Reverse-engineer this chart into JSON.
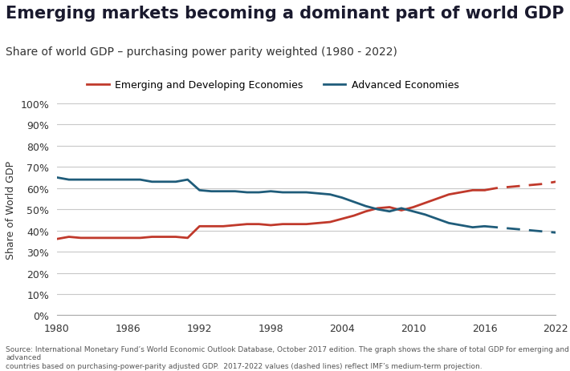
{
  "title": "Emerging markets becoming a dominant part of world GDP",
  "subtitle": "Share of world GDP – purchasing power parity weighted (1980 - 2022)",
  "ylabel": "Share of World GDP",
  "source_text": "Source: International Monetary Fund’s World Economic Outlook Database, October 2017 edition. The graph shows the share of total GDP for emerging and advanced\ncountries based on purchasing-power-parity adjusted GDP.  2017-2022 values (dashed lines) reflect IMF’s medium-term projection.",
  "emerging_solid_x": [
    1980,
    1981,
    1982,
    1983,
    1984,
    1985,
    1986,
    1987,
    1988,
    1989,
    1990,
    1991,
    1992,
    1993,
    1994,
    1995,
    1996,
    1997,
    1998,
    1999,
    2000,
    2001,
    2002,
    2003,
    2004,
    2005,
    2006,
    2007,
    2008,
    2009,
    2010,
    2011,
    2012,
    2013,
    2014,
    2015,
    2016
  ],
  "emerging_solid_y": [
    36.0,
    37.0,
    36.5,
    36.5,
    36.5,
    36.5,
    36.5,
    36.5,
    37.0,
    37.0,
    37.0,
    36.5,
    42.0,
    42.0,
    42.0,
    42.5,
    43.0,
    43.0,
    42.5,
    43.0,
    43.0,
    43.0,
    43.5,
    44.0,
    45.5,
    47.0,
    49.0,
    50.5,
    51.0,
    49.5,
    51.0,
    53.0,
    55.0,
    57.0,
    58.0,
    59.0,
    59.0
  ],
  "emerging_dashed_x": [
    2016,
    2017,
    2018,
    2019,
    2020,
    2021,
    2022
  ],
  "emerging_dashed_y": [
    59.0,
    60.0,
    60.5,
    61.0,
    61.5,
    62.0,
    63.0
  ],
  "advanced_solid_x": [
    1980,
    1981,
    1982,
    1983,
    1984,
    1985,
    1986,
    1987,
    1988,
    1989,
    1990,
    1991,
    1992,
    1993,
    1994,
    1995,
    1996,
    1997,
    1998,
    1999,
    2000,
    2001,
    2002,
    2003,
    2004,
    2005,
    2006,
    2007,
    2008,
    2009,
    2010,
    2011,
    2012,
    2013,
    2014,
    2015,
    2016
  ],
  "advanced_solid_y": [
    65.0,
    64.0,
    64.0,
    64.0,
    64.0,
    64.0,
    64.0,
    64.0,
    63.0,
    63.0,
    63.0,
    64.0,
    59.0,
    58.5,
    58.5,
    58.5,
    58.0,
    58.0,
    58.5,
    58.0,
    58.0,
    58.0,
    57.5,
    57.0,
    55.5,
    53.5,
    51.5,
    50.0,
    49.0,
    50.5,
    49.0,
    47.5,
    45.5,
    43.5,
    42.5,
    41.5,
    42.0
  ],
  "advanced_dashed_x": [
    2016,
    2017,
    2018,
    2019,
    2020,
    2021,
    2022
  ],
  "advanced_dashed_y": [
    42.0,
    41.5,
    41.0,
    40.5,
    40.0,
    39.5,
    39.0
  ],
  "emerging_color": "#c0392b",
  "advanced_color": "#1f5c7a",
  "background_color": "#ffffff",
  "plot_bg_color": "#ffffff",
  "grid_color": "#c8c8c8",
  "xlim": [
    1980,
    2022
  ],
  "ylim": [
    0,
    100
  ],
  "yticks": [
    0,
    10,
    20,
    30,
    40,
    50,
    60,
    70,
    80,
    90,
    100
  ],
  "xticks": [
    1980,
    1986,
    1992,
    1998,
    2004,
    2010,
    2016,
    2022
  ],
  "legend_emerging": "Emerging and Developing Economies",
  "legend_advanced": "Advanced Economies",
  "title_color": "#1a1a2e",
  "subtitle_color": "#333333",
  "linewidth": 2.0,
  "title_fontsize": 15,
  "subtitle_fontsize": 10,
  "axis_fontsize": 9,
  "legend_fontsize": 9,
  "source_fontsize": 6.5
}
